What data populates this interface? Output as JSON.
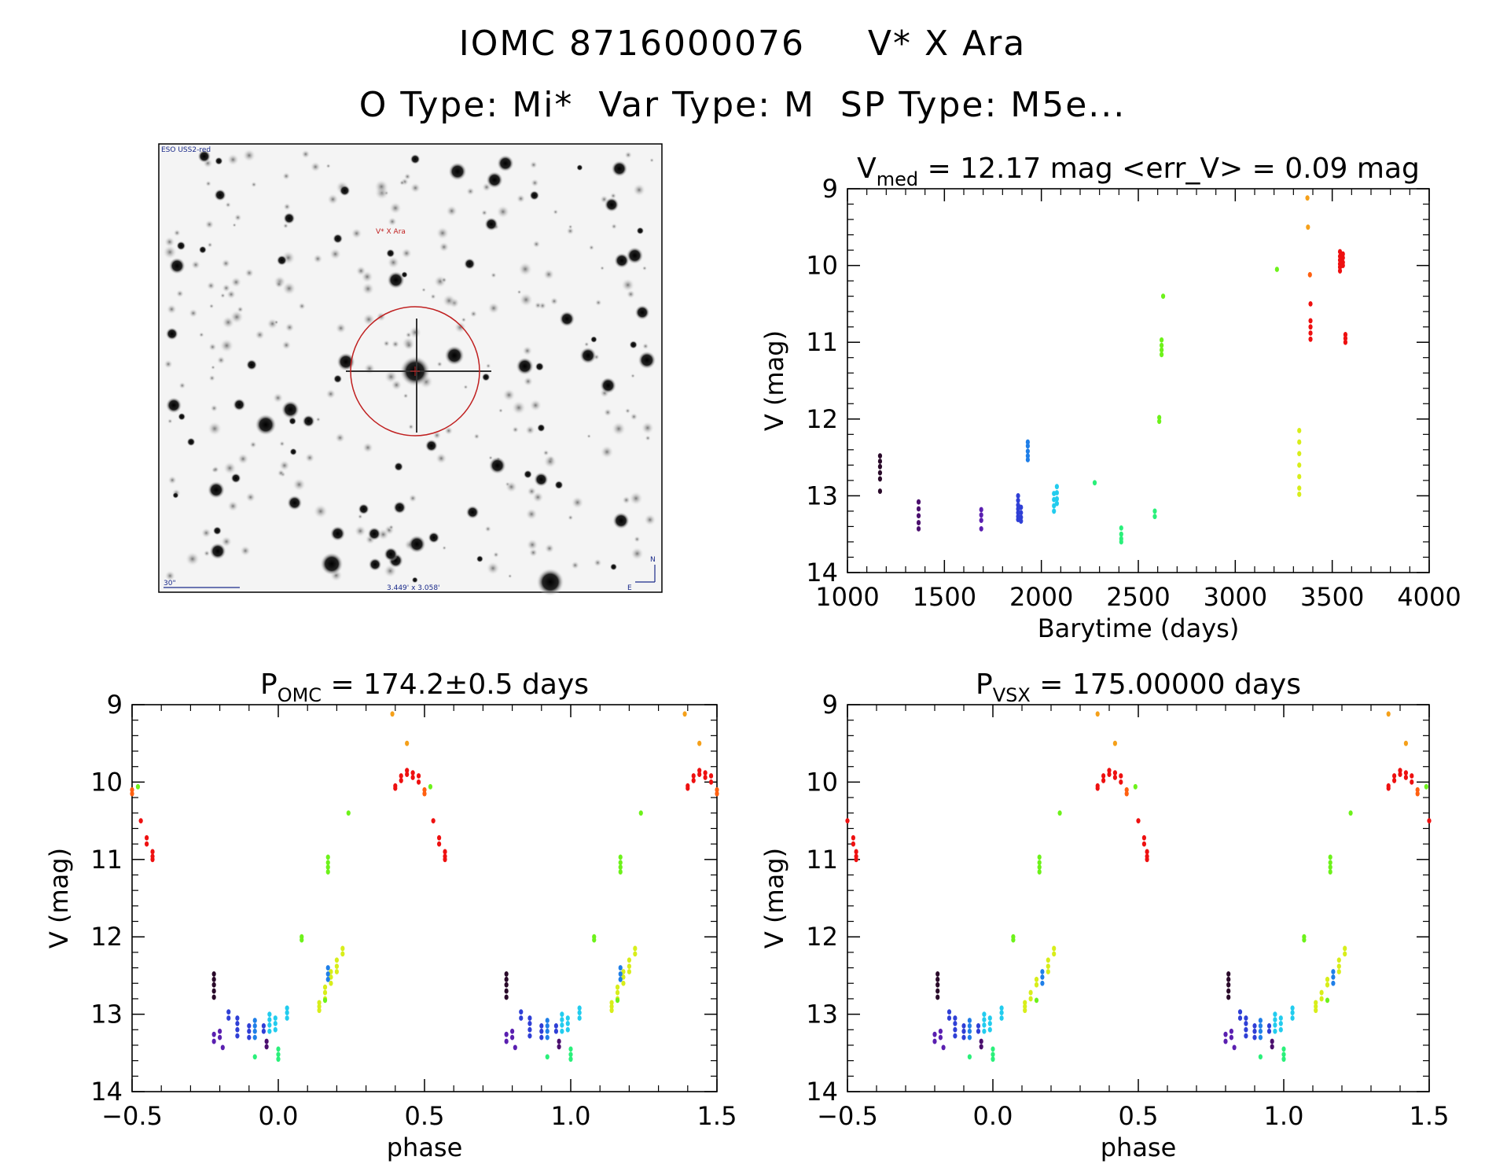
{
  "header": {
    "line1": "IOMC 8716000076     V* X Ara",
    "line2": "O Type: Mi*  Var Type: M  SP Type: M5e..."
  },
  "image_panel": {
    "top_label": "ESO USS2-red",
    "target_label": "V* X Ara",
    "scale_label": "30\"",
    "size_label": "3.449' x 3.058'",
    "north_label": "N",
    "east_label": "E"
  },
  "colors": {
    "palette": [
      "#2a0a2a",
      "#4b0f6e",
      "#5a1fb0",
      "#2f3fd6",
      "#1f7fe8",
      "#22ccee",
      "#2af07a",
      "#6df21a",
      "#d8ee1a",
      "#f5a01a",
      "#ff6010",
      "#ee1010"
    ]
  },
  "chart_data": [
    {
      "id": "lightcurve",
      "type": "scatter",
      "title_main": "V",
      "title_sub": "med",
      "title_rest": " = 12.17 mag <err_V> = 0.09 mag",
      "xlabel": "Barytime (days)",
      "ylabel": "V (mag)",
      "xlim": [
        1000,
        4000
      ],
      "ylim": [
        14,
        9
      ],
      "xticks": [
        1000,
        1500,
        2000,
        2500,
        3000,
        3500,
        4000
      ],
      "yticks": [
        9,
        10,
        11,
        12,
        13,
        14
      ],
      "clusters": [
        {
          "x": 1168,
          "ys": [
            12.48,
            12.55,
            12.62,
            12.7,
            12.78,
            12.94
          ],
          "c": 0
        },
        {
          "x": 1367,
          "ys": [
            13.08,
            13.17,
            13.26,
            13.35,
            13.43
          ],
          "c": 1
        },
        {
          "x": 1690,
          "ys": [
            13.18,
            13.25,
            13.32,
            13.43
          ],
          "c": 2
        },
        {
          "x": 1880,
          "ys": [
            13.0,
            13.06,
            13.12,
            13.17,
            13.22,
            13.27,
            13.31
          ],
          "c": 3
        },
        {
          "x": 1895,
          "ys": [
            13.15,
            13.22,
            13.28,
            13.33
          ],
          "c": 3
        },
        {
          "x": 1930,
          "ys": [
            12.3,
            12.35,
            12.42,
            12.48,
            12.53
          ],
          "c": 4
        },
        {
          "x": 2065,
          "ys": [
            12.97,
            13.05,
            13.13,
            13.2
          ],
          "c": 5
        },
        {
          "x": 2080,
          "ys": [
            12.88,
            12.96,
            13.04,
            13.1
          ],
          "c": 5
        },
        {
          "x": 2275,
          "ys": [
            12.83
          ],
          "c": 6
        },
        {
          "x": 2412,
          "ys": [
            13.42,
            13.5,
            13.56,
            13.6
          ],
          "c": 6
        },
        {
          "x": 2585,
          "ys": [
            13.2,
            13.27
          ],
          "c": 6
        },
        {
          "x": 2608,
          "ys": [
            11.98,
            12.03
          ],
          "c": 7
        },
        {
          "x": 2620,
          "ys": [
            10.97,
            11.04,
            11.1,
            11.16
          ],
          "c": 7
        },
        {
          "x": 2628,
          "ys": [
            10.4
          ],
          "c": 7
        },
        {
          "x": 3215,
          "ys": [
            10.05
          ],
          "c": 7
        },
        {
          "x": 3330,
          "ys": [
            12.15,
            12.3,
            12.45,
            12.6,
            12.75,
            12.9,
            12.98
          ],
          "c": 8
        },
        {
          "x": 3372,
          "ys": [
            9.12
          ],
          "c": 9
        },
        {
          "x": 3375,
          "ys": [
            9.5
          ],
          "c": 9
        },
        {
          "x": 3385,
          "ys": [
            10.12
          ],
          "c": 10
        },
        {
          "x": 3388,
          "ys": [
            10.5,
            10.72,
            10.8,
            10.88,
            10.96
          ],
          "c": 11
        },
        {
          "x": 3540,
          "ys": [
            9.82,
            9.88,
            9.93,
            9.98,
            10.02,
            10.07
          ],
          "c": 11
        },
        {
          "x": 3555,
          "ys": [
            9.85,
            9.9,
            9.96,
            10.0
          ],
          "c": 11
        },
        {
          "x": 3568,
          "ys": [
            10.9,
            10.95,
            11.0
          ],
          "c": 11
        }
      ]
    },
    {
      "id": "phase_omc",
      "type": "scatter",
      "title_main": "P",
      "title_sub": "OMC",
      "title_rest": " = 174.2±0.5 days",
      "xlabel": "phase",
      "ylabel": "V (mag)",
      "xlim": [
        -0.5,
        1.5
      ],
      "ylim": [
        14,
        9
      ],
      "xticks": [
        -0.5,
        0.0,
        0.5,
        1.0,
        1.5
      ],
      "xtick_labels": [
        "−0.5",
        "0.0",
        "0.5",
        "1.0",
        "1.5"
      ],
      "yticks": [
        9,
        10,
        11,
        12,
        13,
        14
      ],
      "clusters": [
        {
          "x": -0.22,
          "ys": [
            12.48,
            12.55,
            12.62,
            12.7,
            12.78
          ],
          "c": 0
        },
        {
          "x": -0.22,
          "ys": [
            13.26,
            13.35
          ],
          "c": 2
        },
        {
          "x": -0.2,
          "ys": [
            13.22,
            13.3
          ],
          "c": 2
        },
        {
          "x": -0.19,
          "ys": [
            13.43
          ],
          "c": 2
        },
        {
          "x": -0.17,
          "ys": [
            12.97,
            13.05
          ],
          "c": 3
        },
        {
          "x": -0.14,
          "ys": [
            13.05,
            13.12,
            13.2,
            13.28
          ],
          "c": 3
        },
        {
          "x": -0.1,
          "ys": [
            13.15,
            13.22,
            13.3
          ],
          "c": 3
        },
        {
          "x": -0.08,
          "ys": [
            13.08,
            13.15,
            13.22,
            13.3
          ],
          "c": 4
        },
        {
          "x": -0.08,
          "ys": [
            13.55
          ],
          "c": 6
        },
        {
          "x": -0.05,
          "ys": [
            13.15,
            13.22
          ],
          "c": 3
        },
        {
          "x": -0.04,
          "ys": [
            13.35,
            13.42
          ],
          "c": 1
        },
        {
          "x": -0.03,
          "ys": [
            13.0,
            13.07,
            13.14,
            13.22
          ],
          "c": 5
        },
        {
          "x": -0.01,
          "ys": [
            13.05,
            13.12,
            13.2
          ],
          "c": 5
        },
        {
          "x": 0.0,
          "ys": [
            13.45,
            13.52,
            13.58
          ],
          "c": 6
        },
        {
          "x": 0.03,
          "ys": [
            12.92,
            12.98,
            13.05
          ],
          "c": 5
        },
        {
          "x": 0.08,
          "ys": [
            12.0,
            12.04
          ],
          "c": 7
        },
        {
          "x": 0.14,
          "ys": [
            12.85,
            12.9,
            12.95
          ],
          "c": 8
        },
        {
          "x": 0.16,
          "ys": [
            12.65,
            12.72,
            12.8
          ],
          "c": 8
        },
        {
          "x": 0.16,
          "ys": [
            12.82
          ],
          "c": 7
        },
        {
          "x": 0.17,
          "ys": [
            10.97,
            11.04,
            11.1,
            11.16
          ],
          "c": 7
        },
        {
          "x": 0.18,
          "ys": [
            12.45,
            12.52,
            12.6
          ],
          "c": 8
        },
        {
          "x": 0.2,
          "ys": [
            12.3,
            12.38,
            12.45
          ],
          "c": 8
        },
        {
          "x": 0.22,
          "ys": [
            12.15,
            12.22
          ],
          "c": 8
        },
        {
          "x": 0.17,
          "ys": [
            12.4,
            12.48,
            12.55
          ],
          "c": 4
        },
        {
          "x": 0.24,
          "ys": [
            10.4
          ],
          "c": 7
        },
        {
          "x": 0.39,
          "ys": [
            9.12
          ],
          "c": 9
        },
        {
          "x": 0.4,
          "ys": [
            10.05,
            10.08
          ],
          "c": 11
        },
        {
          "x": 0.42,
          "ys": [
            9.92,
            9.98
          ],
          "c": 11
        },
        {
          "x": 0.44,
          "ys": [
            9.85,
            9.9
          ],
          "c": 11
        },
        {
          "x": 0.46,
          "ys": [
            9.88,
            9.94
          ],
          "c": 11
        },
        {
          "x": 0.48,
          "ys": [
            9.92,
            10.0
          ],
          "c": 11
        },
        {
          "x": 0.44,
          "ys": [
            9.5
          ],
          "c": 9
        },
        {
          "x": 0.5,
          "ys": [
            10.1,
            10.15
          ],
          "c": 10
        },
        {
          "x": 0.52,
          "ys": [
            10.06
          ],
          "c": 7
        },
        {
          "x": 0.53,
          "ys": [
            10.5
          ],
          "c": 11
        },
        {
          "x": 0.55,
          "ys": [
            10.72,
            10.8
          ],
          "c": 11
        },
        {
          "x": 0.57,
          "ys": [
            10.9,
            10.96,
            11.0
          ],
          "c": 11
        }
      ]
    },
    {
      "id": "phase_vsx",
      "type": "scatter",
      "title_main": "P",
      "title_sub": "VSX",
      "title_rest": " = 175.00000 days",
      "xlabel": "phase",
      "ylabel": "V (mag)",
      "xlim": [
        -0.5,
        1.5
      ],
      "ylim": [
        14,
        9
      ],
      "xticks": [
        -0.5,
        0.0,
        0.5,
        1.0,
        1.5
      ],
      "xtick_labels": [
        "−0.5",
        "0.0",
        "0.5",
        "1.0",
        "1.5"
      ],
      "yticks": [
        9,
        10,
        11,
        12,
        13,
        14
      ],
      "clusters": [
        {
          "x": -0.19,
          "ys": [
            12.48,
            12.55,
            12.62,
            12.7,
            12.78
          ],
          "c": 0
        },
        {
          "x": -0.2,
          "ys": [
            13.26,
            13.35
          ],
          "c": 2
        },
        {
          "x": -0.18,
          "ys": [
            13.22,
            13.3
          ],
          "c": 2
        },
        {
          "x": -0.17,
          "ys": [
            13.43
          ],
          "c": 2
        },
        {
          "x": -0.15,
          "ys": [
            12.97,
            13.05
          ],
          "c": 3
        },
        {
          "x": -0.13,
          "ys": [
            13.05,
            13.12,
            13.2,
            13.28
          ],
          "c": 3
        },
        {
          "x": -0.1,
          "ys": [
            13.15,
            13.22,
            13.3
          ],
          "c": 3
        },
        {
          "x": -0.08,
          "ys": [
            13.08,
            13.15,
            13.22,
            13.3
          ],
          "c": 4
        },
        {
          "x": -0.08,
          "ys": [
            13.55
          ],
          "c": 6
        },
        {
          "x": -0.05,
          "ys": [
            13.15,
            13.22
          ],
          "c": 3
        },
        {
          "x": -0.04,
          "ys": [
            13.35,
            13.42
          ],
          "c": 1
        },
        {
          "x": -0.03,
          "ys": [
            13.0,
            13.07,
            13.14,
            13.22
          ],
          "c": 5
        },
        {
          "x": -0.01,
          "ys": [
            13.05,
            13.12,
            13.2
          ],
          "c": 5
        },
        {
          "x": 0.0,
          "ys": [
            13.45,
            13.52,
            13.58
          ],
          "c": 6
        },
        {
          "x": 0.03,
          "ys": [
            12.92,
            12.98,
            13.05
          ],
          "c": 5
        },
        {
          "x": 0.07,
          "ys": [
            12.0,
            12.04
          ],
          "c": 7
        },
        {
          "x": 0.11,
          "ys": [
            12.85,
            12.9,
            12.95
          ],
          "c": 8
        },
        {
          "x": 0.13,
          "ys": [
            12.72,
            12.8
          ],
          "c": 8
        },
        {
          "x": 0.15,
          "ys": [
            12.82
          ],
          "c": 7
        },
        {
          "x": 0.16,
          "ys": [
            10.97,
            11.04,
            11.1,
            11.16
          ],
          "c": 7
        },
        {
          "x": 0.15,
          "ys": [
            12.55,
            12.62
          ],
          "c": 8
        },
        {
          "x": 0.17,
          "ys": [
            12.45,
            12.52,
            12.6
          ],
          "c": 4
        },
        {
          "x": 0.19,
          "ys": [
            12.3,
            12.38,
            12.45
          ],
          "c": 8
        },
        {
          "x": 0.21,
          "ys": [
            12.15,
            12.22
          ],
          "c": 8
        },
        {
          "x": 0.23,
          "ys": [
            10.4
          ],
          "c": 7
        },
        {
          "x": 0.36,
          "ys": [
            9.12
          ],
          "c": 9
        },
        {
          "x": 0.36,
          "ys": [
            10.05,
            10.08
          ],
          "c": 11
        },
        {
          "x": 0.38,
          "ys": [
            9.92,
            9.98
          ],
          "c": 11
        },
        {
          "x": 0.4,
          "ys": [
            9.85,
            9.9
          ],
          "c": 11
        },
        {
          "x": 0.42,
          "ys": [
            9.88,
            9.94
          ],
          "c": 11
        },
        {
          "x": 0.44,
          "ys": [
            9.92,
            10.0
          ],
          "c": 11
        },
        {
          "x": 0.42,
          "ys": [
            9.5
          ],
          "c": 9
        },
        {
          "x": 0.46,
          "ys": [
            10.1,
            10.15
          ],
          "c": 10
        },
        {
          "x": 0.49,
          "ys": [
            10.06
          ],
          "c": 7
        },
        {
          "x": 0.5,
          "ys": [
            10.5
          ],
          "c": 11
        },
        {
          "x": 0.52,
          "ys": [
            10.72,
            10.8
          ],
          "c": 11
        },
        {
          "x": 0.53,
          "ys": [
            10.9,
            10.96,
            11.0
          ],
          "c": 11
        }
      ]
    }
  ]
}
